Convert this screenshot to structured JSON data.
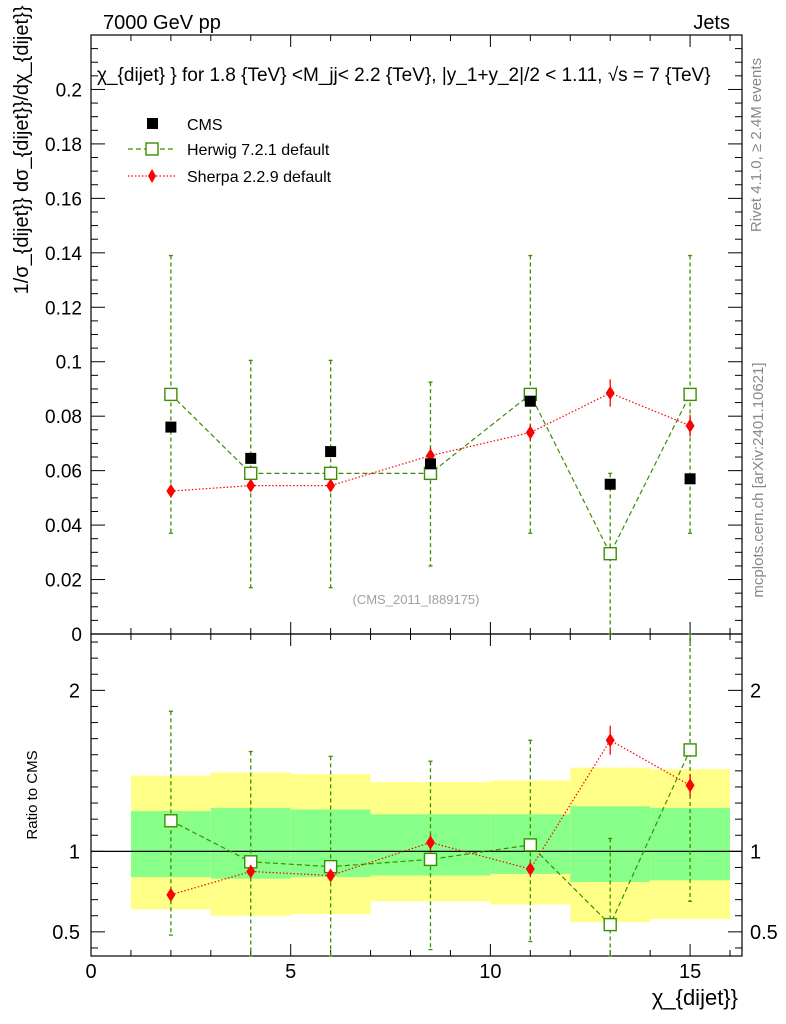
{
  "header": {
    "left": "7000 GeV pp",
    "right": "Jets"
  },
  "chart_data": [
    {
      "type": "scatter",
      "panel": "main",
      "title": "χ_{dijet} } for 1.8 {TeV} <M_jj< 2.2 {TeV}, |y_1+y_2|/2 < 1.11, √s = 7 {TeV}",
      "ylabel": "1/σ_{dijet}} dσ_{dijet}}/dχ_{dijet}}",
      "xlim": [
        0,
        16.3
      ],
      "ylim": [
        0,
        0.22
      ],
      "y_ticks": [
        "0",
        "0.02",
        "0.04",
        "0.06",
        "0.08",
        "0.1",
        "0.12",
        "0.14",
        "0.16",
        "0.18",
        "0.2"
      ],
      "y_tick_values": [
        0,
        0.02,
        0.04,
        0.06,
        0.08,
        0.1,
        0.12,
        0.14,
        0.16,
        0.18,
        0.2
      ],
      "x_major_ticks": [
        0,
        5,
        10,
        15
      ],
      "watermark": "(CMS_2011_I889175)",
      "legend": [
        "CMS",
        "Herwig 7.2.1 default",
        "Sherpa 2.2.9 default"
      ],
      "series": [
        {
          "name": "CMS",
          "color": "#000000",
          "marker": "square-filled",
          "x": [
            2,
            4,
            6,
            8.5,
            11,
            13,
            15
          ],
          "y": [
            0.076,
            0.0645,
            0.067,
            0.0625,
            0.0855,
            0.055,
            0.057
          ],
          "yerr": [
            0.001,
            0.001,
            0.001,
            0.001,
            0.001,
            0.001,
            0.001
          ]
        },
        {
          "name": "Herwig 7.2.1 default",
          "color": "#3a8f00",
          "marker": "square-open",
          "line": "dashed",
          "x": [
            2,
            4,
            6,
            8.5,
            11,
            13,
            15
          ],
          "y": [
            0.088,
            0.059,
            0.059,
            0.059,
            0.088,
            0.0295,
            0.088
          ],
          "ylow": [
            0.037,
            0.017,
            0.017,
            0.025,
            0.037,
            0.0,
            0.037
          ],
          "yhigh": [
            0.139,
            0.1005,
            0.1005,
            0.0925,
            0.139,
            0.059,
            0.139
          ]
        },
        {
          "name": "Sherpa 2.2.9 default",
          "color": "#ff0000",
          "marker": "diamond-filled",
          "line": "dotted",
          "x": [
            2,
            4,
            6,
            8.5,
            11,
            13,
            15
          ],
          "y": [
            0.0525,
            0.0545,
            0.0545,
            0.0655,
            0.074,
            0.0885,
            0.0765
          ],
          "yerr": [
            0.002,
            0.002,
            0.002,
            0.003,
            0.003,
            0.005,
            0.004
          ]
        }
      ]
    },
    {
      "type": "scatter",
      "panel": "ratio",
      "ylabel": "Ratio to CMS",
      "xlabel": "χ_{dijet}}",
      "xlim": [
        0,
        16.3
      ],
      "ylim": [
        0.35,
        2.35
      ],
      "y_ticks": [
        "0.5",
        "1",
        "2"
      ],
      "y_tick_values": [
        0.5,
        1,
        2
      ],
      "x_ticks": [
        "0",
        "5",
        "10",
        "15"
      ],
      "x_tick_values": [
        0,
        5,
        10,
        15
      ],
      "bands": {
        "edges": [
          1,
          3,
          5,
          7,
          10,
          12,
          14,
          16
        ],
        "green_low": [
          0.84,
          0.83,
          0.84,
          0.85,
          0.86,
          0.81,
          0.82
        ],
        "green_high": [
          1.25,
          1.27,
          1.26,
          1.23,
          1.23,
          1.28,
          1.27
        ],
        "yellow_low": [
          0.64,
          0.6,
          0.61,
          0.69,
          0.67,
          0.56,
          0.58
        ],
        "yellow_high": [
          1.47,
          1.49,
          1.48,
          1.43,
          1.44,
          1.52,
          1.51
        ]
      },
      "series": [
        {
          "name": "Herwig 7.2.1 default",
          "color": "#3a8f00",
          "x": [
            2,
            4,
            6,
            8.5,
            11,
            13,
            15
          ],
          "y": [
            1.19,
            0.935,
            0.905,
            0.95,
            1.04,
            0.545,
            1.63
          ],
          "ylow": [
            0.48,
            0.28,
            0.28,
            0.39,
            0.44,
            0.2,
            0.69
          ],
          "yhigh": [
            1.87,
            1.62,
            1.59,
            1.56,
            1.69,
            1.08,
            2.38
          ]
        },
        {
          "name": "Sherpa 2.2.9 default",
          "color": "#ff0000",
          "x": [
            2,
            4,
            6,
            8.5,
            11,
            13,
            15
          ],
          "y": [
            0.73,
            0.875,
            0.85,
            1.055,
            0.89,
            1.69,
            1.41
          ],
          "yerr": [
            0.03,
            0.03,
            0.03,
            0.05,
            0.04,
            0.09,
            0.07
          ]
        }
      ]
    }
  ],
  "side_labels": {
    "rivet": "Rivet 4.1.0, ≥ 2.4M events",
    "mcplots": "mcplots.cern.ch [arXiv:2401.10621]"
  }
}
